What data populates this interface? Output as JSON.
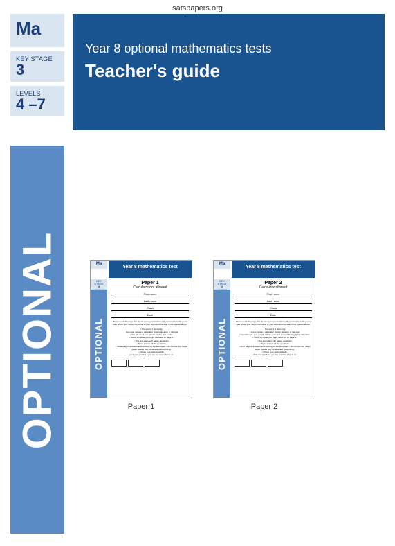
{
  "site": {
    "header": "satspapers.org"
  },
  "labels": {
    "ma": "Ma",
    "key_stage_label": "KEY STAGE",
    "key_stage_value": "3",
    "levels_label": "LEVELS",
    "levels_value": "4 –7"
  },
  "title": {
    "line1": "Year 8 optional mathematics tests",
    "line2": "Teacher's guide"
  },
  "optional_text": "OPTIONAL",
  "papers": [
    {
      "caption": "Paper 1",
      "thumb": {
        "ma": "Ma",
        "ks_label": "KEY STAGE",
        "ks_value": "3",
        "lv_label": "LEVELS",
        "lv_value": "4–6",
        "title": "Year 8 mathematics test",
        "paper_label": "Paper 1",
        "calc": "Calculator not allowed",
        "fields": [
          "First name",
          "Last name",
          "Class",
          "Date"
        ],
        "instr": "Please read this page, but do not open your booklet until your teacher tells you to start. Write your name, the name of your class and the date in the spaces above.",
        "bullets": [
          "The test is 1 hour long.",
          "You must not use a calculator for any question in this test.",
          "You will need: pen, pencil, rubber and a ruler.",
          "Some formulae you might need are on page 2.",
          "This test starts with easier questions.",
          "Try to answer all the questions.",
          "Write all your answers and working on the test paper – do not use any rough paper. Marks may be awarded for working.",
          "Check your work carefully.",
          "Ask your teacher if you are not sure what to do."
        ]
      }
    },
    {
      "caption": "Paper  2",
      "thumb": {
        "ma": "Ma",
        "ks_label": "KEY STAGE",
        "ks_value": "3",
        "lv_label": "LEVELS",
        "lv_value": "4–6",
        "title": "Year 8 mathematics test",
        "paper_label": "Paper 2",
        "calc": "Calculator allowed",
        "fields": [
          "First name",
          "Last name",
          "Class",
          "Date"
        ],
        "instr": "Please read this page, but do not open your booklet until your teacher tells you to start. Write your name, the name of your class and the date in the spaces above.",
        "bullets": [
          "The test is 1 hour long.",
          "You may use a calculator for any question in this test.",
          "You will need: pen, pencil, rubber, ruler and a scientific or graphic calculator.",
          "Some formulae you might need are on page 2.",
          "This test starts with easier questions.",
          "Try to answer all the questions.",
          "Write all your answers and working on the test paper – do not use any rough paper. Marks may be awarded for working.",
          "Check your work carefully.",
          "Ask your teacher if you are not sure what to do."
        ]
      }
    }
  ],
  "colors": {
    "dark_blue": "#1a5490",
    "light_blue": "#d9e6f2",
    "mid_blue": "#5a8bc4",
    "label_text": "#1a3d7a"
  }
}
